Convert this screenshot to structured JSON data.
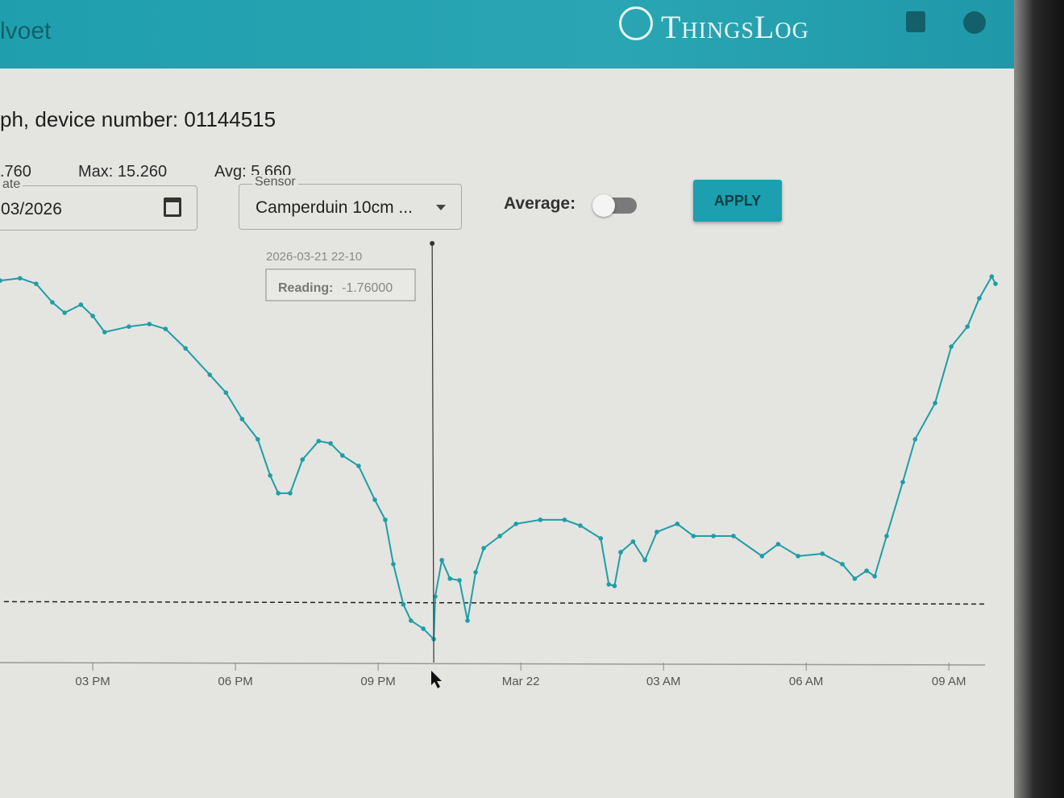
{
  "header": {
    "title": "lvoet",
    "brand": "ThingsLog"
  },
  "device": "ph, device number: 01144515",
  "stats": {
    "min": ".760",
    "max": "Max: 15.260",
    "avg": "Avg: 5.660"
  },
  "controls": {
    "date_label": "ate",
    "date_value": "03/2026",
    "sensor_label": "Sensor",
    "sensor_value": "Camperduin 10cm ...",
    "average_label": "Average:",
    "apply": "APPLY"
  },
  "tooltip": {
    "time": "2026-03-21 22-10",
    "label": "Reading:",
    "value": "-1.76000"
  },
  "chart_data": {
    "type": "line",
    "color": "#1d9ea6",
    "x": [
      13.05,
      13.47,
      13.81,
      14.15,
      14.41,
      14.75,
      15.0,
      15.25,
      15.76,
      16.19,
      16.53,
      16.95,
      17.46,
      17.8,
      18.14,
      18.47,
      18.73,
      18.9,
      19.15,
      19.41,
      19.75,
      20.0,
      20.25,
      20.59,
      20.93,
      21.15,
      21.32,
      21.53,
      21.69,
      21.95,
      22.17,
      22.2,
      22.34,
      22.51,
      22.71,
      22.88,
      23.05,
      23.22,
      23.56,
      23.9,
      24.41,
      24.92,
      25.25,
      25.68,
      25.85,
      25.97,
      26.1,
      26.36,
      26.61,
      26.86,
      27.29,
      27.63,
      28.05,
      28.47,
      29.07,
      29.41,
      29.83,
      30.34,
      30.76,
      31.02,
      31.27,
      31.44,
      31.69,
      32.03,
      32.29,
      32.71,
      33.05,
      33.39,
      33.64,
      33.9,
      33.98
    ],
    "values": [
      15.07,
      15.18,
      14.92,
      14.05,
      13.56,
      13.94,
      13.41,
      12.65,
      12.91,
      13.03,
      12.8,
      11.89,
      10.65,
      9.81,
      8.57,
      7.62,
      5.92,
      5.09,
      5.09,
      6.67,
      7.54,
      7.43,
      6.86,
      6.37,
      4.78,
      3.84,
      1.76,
      -0.13,
      -0.89,
      -1.27,
      -1.76,
      0.24,
      1.95,
      1.08,
      1.0,
      -0.89,
      1.38,
      2.51,
      3.08,
      3.65,
      3.84,
      3.84,
      3.57,
      2.97,
      0.81,
      0.74,
      2.32,
      2.82,
      1.95,
      3.27,
      3.65,
      3.08,
      3.08,
      3.08,
      2.14,
      2.7,
      2.14,
      2.25,
      1.76,
      1.08,
      1.45,
      1.19,
      3.08,
      5.61,
      7.62,
      9.32,
      11.97,
      12.91,
      14.24,
      15.26,
      14.92
    ],
    "xlim": [
      13.05,
      34.2
    ],
    "ylim": [
      -2.86,
      16.89
    ],
    "xticks": [
      {
        "value": 15,
        "label": "03 PM"
      },
      {
        "value": 18,
        "label": "06 PM"
      },
      {
        "value": 21,
        "label": "09 PM"
      },
      {
        "value": 24,
        "label": "Mar 22"
      },
      {
        "value": 27,
        "label": "03 AM"
      },
      {
        "value": 30,
        "label": "06 AM"
      },
      {
        "value": 33,
        "label": "09 AM"
      }
    ],
    "threshold": 0,
    "cursor_x": 22.17
  }
}
